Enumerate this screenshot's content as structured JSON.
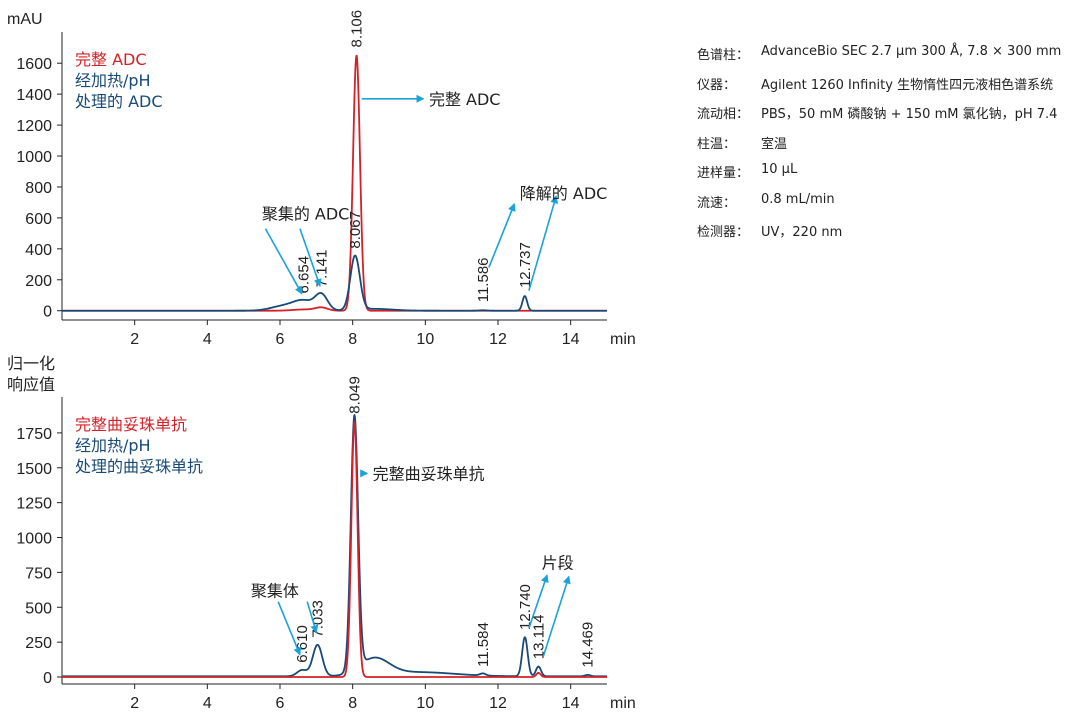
{
  "conditions": [
    {
      "label": "色谱柱：",
      "value": "AdvanceBio SEC 2.7 µm 300 Å, 7.8 × 300 mm"
    },
    {
      "label": "仪器：",
      "value": "Agilent 1260 Infinity 生物惰性四元液相色谱系统"
    },
    {
      "label": "流动相：",
      "value": "PBS，50 mM 磷酸钠 + 150 mM 氯化钠，pH 7.4"
    },
    {
      "label": "柱温：",
      "value": "室温"
    },
    {
      "label": "进样量：",
      "value": "10 µL"
    },
    {
      "label": "流速：",
      "value": "0.8 mL/min"
    },
    {
      "label": "检测器：",
      "value": "UV，220 nm"
    }
  ],
  "colors": {
    "intact": "#d62027",
    "treated": "#184a78",
    "annotation": "#1aa3d9",
    "axis": "#222222"
  },
  "chart_data": [
    {
      "type": "line",
      "xlabel": "min",
      "ylabel": "mAU",
      "xlim": [
        0,
        15
      ],
      "ylim": [
        -60,
        1750
      ],
      "xticks": [
        2,
        4,
        6,
        8,
        10,
        12,
        14
      ],
      "yticks": [
        0,
        200,
        400,
        600,
        800,
        1000,
        1200,
        1400,
        1600
      ],
      "legend": {
        "position": "top-left",
        "entries": [
          {
            "text": "完整 ADC",
            "color": "intact"
          },
          {
            "text": "经加热/pH",
            "color": "treated"
          },
          {
            "text": "处理的 ADC",
            "color": "treated"
          }
        ]
      },
      "series": [
        {
          "color": "intact",
          "baseline": 0,
          "peaks": [
            {
              "x": 6.654,
              "height": 8,
              "width": 0.3
            },
            {
              "x": 7.141,
              "height": 20,
              "width": 0.17
            },
            {
              "x": 8.106,
              "height": 1650,
              "width": 0.095
            }
          ]
        },
        {
          "color": "treated",
          "baseline": 0,
          "peaks": [
            {
              "x": 6.1,
              "height": 30,
              "width": 0.35
            },
            {
              "x": 6.654,
              "height": 60,
              "width": 0.28
            },
            {
              "x": 7.141,
              "height": 100,
              "width": 0.17
            },
            {
              "x": 8.067,
              "height": 350,
              "width": 0.13
            },
            {
              "x": 8.6,
              "height": 12,
              "width": 0.5
            },
            {
              "x": 11.586,
              "height": 3,
              "width": 0.1
            },
            {
              "x": 12.737,
              "height": 95,
              "width": 0.065
            }
          ]
        }
      ],
      "peak_labels": [
        {
          "text": "8.106",
          "x": 8.106,
          "y": 1650
        },
        {
          "text": "6.654",
          "x": 6.654,
          "y": 60
        },
        {
          "text": "7.141",
          "x": 7.141,
          "y": 100
        },
        {
          "text": "8.067",
          "x": 8.067,
          "y": 350
        },
        {
          "text": "11.586",
          "x": 11.586,
          "y": 3
        },
        {
          "text": "12.737",
          "x": 12.737,
          "y": 95
        }
      ],
      "annotations": [
        {
          "text": "完整 ADC",
          "x": 10.1,
          "y": 1370,
          "arrows": [
            {
              "from": [
                8.25,
                1370
              ],
              "to": [
                9.95,
                1370
              ]
            }
          ]
        },
        {
          "text": "聚集的 ADC",
          "x": 5.5,
          "y": 630,
          "arrows": [
            {
              "from": [
                5.6,
                530
              ],
              "to": [
                6.6,
                110
              ]
            },
            {
              "from": [
                6.55,
                530
              ],
              "to": [
                7.1,
                160
              ]
            }
          ]
        },
        {
          "text": "降解的 ADC",
          "x": 12.6,
          "y": 760,
          "arrows": [
            {
              "from": [
                11.75,
                280
              ],
              "to": [
                12.45,
                690
              ]
            },
            {
              "from": [
                12.85,
                130
              ],
              "to": [
                13.6,
                740
              ]
            }
          ]
        }
      ]
    },
    {
      "type": "line",
      "xlabel": "min",
      "ylabel": "归一化\n响应值",
      "xlim": [
        0,
        15
      ],
      "ylim": [
        -50,
        1950
      ],
      "xticks": [
        2,
        4,
        6,
        8,
        10,
        12,
        14
      ],
      "yticks": [
        0,
        250,
        500,
        750,
        1000,
        1250,
        1500,
        1750
      ],
      "legend": {
        "position": "top-left",
        "entries": [
          {
            "text": "完整曲妥珠单抗",
            "color": "intact"
          },
          {
            "text": "经加热/pH",
            "color": "treated"
          },
          {
            "text": "处理的曲妥珠单抗",
            "color": "treated"
          }
        ]
      },
      "series": [
        {
          "color": "treated",
          "baseline": 5,
          "peaks": [
            {
              "x": 6.61,
              "height": 45,
              "width": 0.14
            },
            {
              "x": 7.033,
              "height": 225,
              "width": 0.13
            },
            {
              "x": 8.049,
              "height": 1820,
              "width": 0.1
            },
            {
              "x": 8.6,
              "height": 120,
              "width": 0.4
            },
            {
              "x": 9.8,
              "height": 30,
              "width": 1.0
            },
            {
              "x": 11.584,
              "height": 15,
              "width": 0.08
            },
            {
              "x": 12.74,
              "height": 280,
              "width": 0.075
            },
            {
              "x": 13.114,
              "height": 70,
              "width": 0.07
            },
            {
              "x": 14.469,
              "height": 10,
              "width": 0.08
            }
          ]
        },
        {
          "color": "intact",
          "baseline": 0,
          "peaks": [
            {
              "x": 8.049,
              "height": 1830,
              "width": 0.085
            },
            {
              "x": 13.114,
              "height": 30,
              "width": 0.06
            }
          ]
        }
      ],
      "peak_labels": [
        {
          "text": "8.049",
          "x": 8.049,
          "y": 1830
        },
        {
          "text": "6.610",
          "x": 6.61,
          "y": 45
        },
        {
          "text": "7.033",
          "x": 7.033,
          "y": 225
        },
        {
          "text": "11.584",
          "x": 11.584,
          "y": 15
        },
        {
          "text": "12.740",
          "x": 12.74,
          "y": 280
        },
        {
          "text": "13.114",
          "x": 13.114,
          "y": 70
        },
        {
          "text": "14.469",
          "x": 14.469,
          "y": 10
        }
      ],
      "annotations": [
        {
          "text": "完整曲妥珠单抗",
          "x": 8.55,
          "y": 1460,
          "arrows": [
            {
              "from": [
                8.25,
                1460
              ],
              "to": [
                8.4,
                1460
              ]
            }
          ]
        },
        {
          "text": "聚集体",
          "x": 5.2,
          "y": 620,
          "arrows": [
            {
              "from": [
                5.95,
                540
              ],
              "to": [
                6.55,
                160
              ]
            },
            {
              "from": [
                6.75,
                540
              ],
              "to": [
                7.0,
                320
              ]
            }
          ]
        },
        {
          "text": "片段",
          "x": 13.2,
          "y": 820,
          "arrows": [
            {
              "from": [
                12.85,
                350
              ],
              "to": [
                13.35,
                730
              ]
            },
            {
              "from": [
                13.25,
                150
              ],
              "to": [
                13.95,
                720
              ]
            }
          ]
        }
      ]
    }
  ]
}
